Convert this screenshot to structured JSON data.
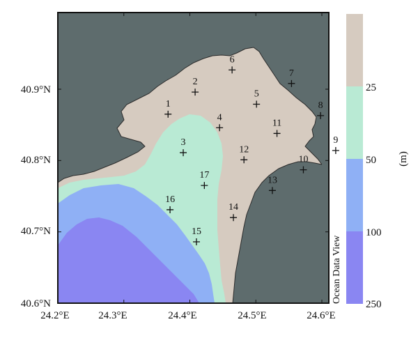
{
  "map": {
    "colors": {
      "land": "#5e6c6d",
      "depth_0_25": "#d6cbc0",
      "depth_25_50": "#b9ead4",
      "depth_50_100": "#8fb0f5",
      "depth_100_250": "#8a86f2",
      "coast": "#2b2b2b"
    },
    "lat_labels": [
      "40.9°N",
      "40.8°N",
      "40.7°N",
      "40.6°N"
    ],
    "lon_labels": [
      "24.2°E",
      "24.3°E",
      "24.4°E",
      "24.5°E",
      "24.6°E"
    ],
    "stations": [
      {
        "id": "1",
        "lon": 24.367,
        "lat": 40.865
      },
      {
        "id": "2",
        "lon": 24.408,
        "lat": 40.896
      },
      {
        "id": "3",
        "lon": 24.39,
        "lat": 40.811
      },
      {
        "id": "4",
        "lon": 24.445,
        "lat": 40.846
      },
      {
        "id": "5",
        "lon": 24.501,
        "lat": 40.879
      },
      {
        "id": "6",
        "lon": 24.464,
        "lat": 40.927
      },
      {
        "id": "7",
        "lon": 24.554,
        "lat": 40.908
      },
      {
        "id": "8",
        "lon": 24.598,
        "lat": 40.863
      },
      {
        "id": "9",
        "lon": 24.621,
        "lat": 40.814
      },
      {
        "id": "10",
        "lon": 24.572,
        "lat": 40.787
      },
      {
        "id": "11",
        "lon": 24.532,
        "lat": 40.838
      },
      {
        "id": "12",
        "lon": 24.482,
        "lat": 40.801
      },
      {
        "id": "13",
        "lon": 24.525,
        "lat": 40.758
      },
      {
        "id": "14",
        "lon": 24.466,
        "lat": 40.72
      },
      {
        "id": "15",
        "lon": 24.41,
        "lat": 40.686
      },
      {
        "id": "16",
        "lon": 24.37,
        "lat": 40.731
      },
      {
        "id": "17",
        "lon": 24.422,
        "lat": 40.765
      }
    ]
  },
  "colorbar": {
    "levels": [
      "25",
      "50",
      "100",
      "250"
    ],
    "unit": "(m)",
    "watermark": "Ocean Data View"
  }
}
